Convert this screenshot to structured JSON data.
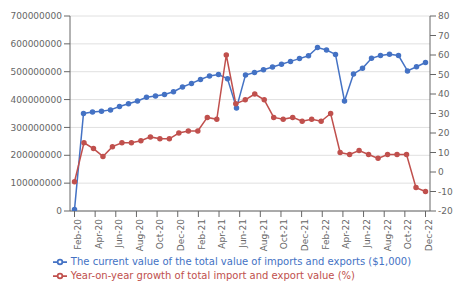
{
  "chart_data": {
    "type": "line",
    "xlim": [
      -0.5,
      39.5
    ],
    "xticks": [
      {
        "value": 0,
        "label": "Feb-20"
      },
      {
        "value": 2.2941,
        "label": "Apr-20"
      },
      {
        "value": 4.5882,
        "label": "Jun-20"
      },
      {
        "value": 6.8824,
        "label": "Aug-20"
      },
      {
        "value": 9.1765,
        "label": "Oct-20"
      },
      {
        "value": 11.4706,
        "label": "Dec-20"
      },
      {
        "value": 13.7647,
        "label": "Feb-21"
      },
      {
        "value": 16.0588,
        "label": "Apr-21"
      },
      {
        "value": 18.3529,
        "label": "Jun-21"
      },
      {
        "value": 20.6471,
        "label": "Aug-21"
      },
      {
        "value": 22.9412,
        "label": "Oct-21"
      },
      {
        "value": 25.2353,
        "label": "Dec-21"
      },
      {
        "value": 27.5294,
        "label": "Feb-22"
      },
      {
        "value": 29.8235,
        "label": "Apr-22"
      },
      {
        "value": 32.1176,
        "label": "Jun-22"
      },
      {
        "value": 34.4118,
        "label": "Aug-22"
      },
      {
        "value": 36.7059,
        "label": "Oct-22"
      },
      {
        "value": 39,
        "label": "Dec-22"
      }
    ],
    "ylim": [
      0,
      700000000
    ],
    "yticks": [
      0,
      100000000,
      200000000,
      300000000,
      400000000,
      500000000,
      600000000,
      700000000
    ],
    "y2lim": [
      -20,
      80
    ],
    "y2ticks": [
      -20,
      -10,
      0,
      10,
      20,
      30,
      40,
      50,
      60,
      70,
      80
    ],
    "grid": true,
    "legend": "bottom",
    "series": [
      {
        "name": "The current value of the total value of imports and exports ($1,000)",
        "color": "#4472c4",
        "marker": "circle",
        "line_style": "solid",
        "x": [
          0,
          1,
          2,
          3,
          4,
          5,
          6,
          7,
          8,
          9,
          10,
          11,
          12,
          13,
          14,
          15,
          16,
          17,
          18,
          19,
          20,
          21,
          22,
          23,
          24,
          25,
          26,
          27,
          28,
          29,
          30,
          31,
          32,
          33,
          34,
          35,
          36,
          37,
          38,
          39
        ],
        "values": [
          5000000,
          350000000,
          355000000,
          358000000,
          363000000,
          375000000,
          385000000,
          395000000,
          408000000,
          413000000,
          418000000,
          428000000,
          445000000,
          458000000,
          472000000,
          485000000,
          490000000,
          475000000,
          370000000,
          488000000,
          497000000,
          507000000,
          517000000,
          527000000,
          537000000,
          547000000,
          557000000,
          587000000,
          578000000,
          562000000,
          395000000,
          492000000,
          512000000,
          548000000,
          558000000,
          563000000,
          558000000,
          503000000,
          518000000,
          533000000
        ]
      },
      {
        "name": "Year-on-year growth of total import and export value (%)",
        "color": "#c0504d",
        "marker": "circle",
        "line_style": "solid",
        "axis": "y2",
        "x": [
          0,
          1.0541,
          2.1081,
          3.1622,
          4.2162,
          5.2703,
          6.3243,
          7.3784,
          8.4324,
          9.4865,
          10.5405,
          11.5946,
          12.6486,
          13.7027,
          14.7568,
          15.8108,
          16.8649,
          17.9189,
          18.973,
          20.027,
          21.0811,
          22.1351,
          23.1892,
          24.2432,
          25.2973,
          26.3514,
          27.4054,
          28.4595,
          29.5135,
          30.5676,
          31.6216,
          32.6757,
          33.7297,
          34.7838,
          35.8378,
          36.8919,
          37.9459,
          39
        ],
        "values": [
          -5,
          15,
          12,
          8,
          13,
          15,
          15,
          16,
          18,
          17,
          17,
          20,
          21,
          21,
          28,
          27,
          60,
          35,
          37,
          40,
          37,
          28,
          27,
          28,
          26,
          27,
          26,
          30,
          10,
          9,
          11,
          9,
          7,
          9,
          9,
          9,
          -8,
          -10
        ]
      }
    ]
  }
}
